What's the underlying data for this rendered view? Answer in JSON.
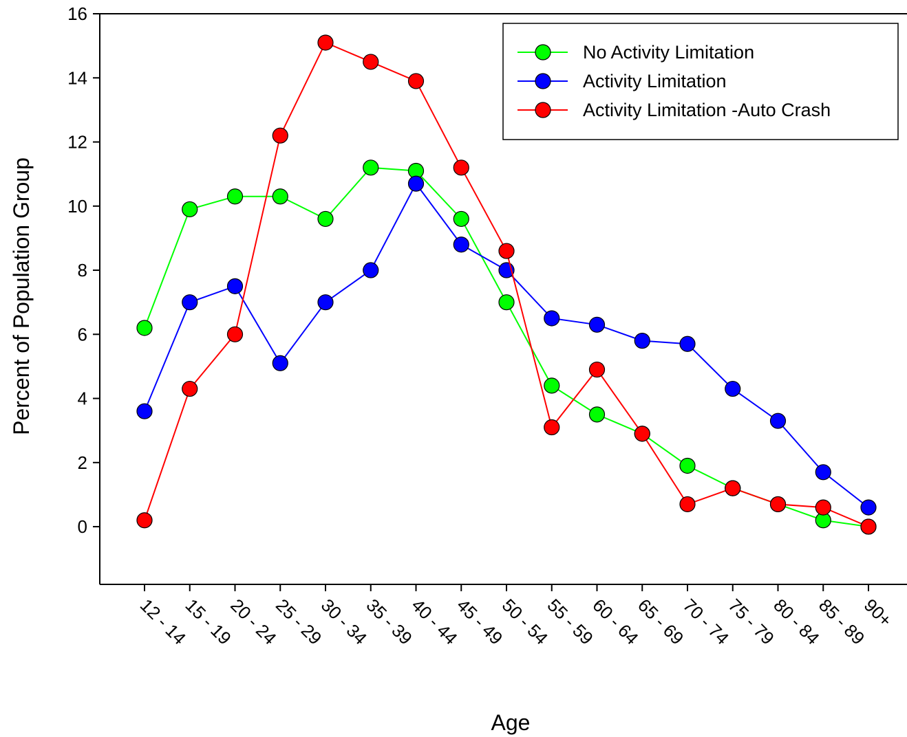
{
  "chart_data": {
    "type": "line",
    "title": "",
    "xlabel": "Age",
    "ylabel": "Percent of Population Group",
    "ylim": [
      -1.8,
      16
    ],
    "yticks": [
      0,
      2,
      4,
      6,
      8,
      10,
      12,
      14,
      16
    ],
    "categories": [
      "12 - 14",
      "15 - 19",
      "20 - 24",
      "25 - 29",
      "30 - 34",
      "35 - 39",
      "40 - 44",
      "45 - 49",
      "50 - 54",
      "55 - 59",
      "60 - 64",
      "65 - 69",
      "70 - 74",
      "75 - 79",
      "80 - 84",
      "85 - 89",
      "90+"
    ],
    "grid": false,
    "legend_position": "top-right",
    "series": [
      {
        "name": "No Activity Limitation",
        "color": "#00ff00",
        "values": [
          6.2,
          9.9,
          10.3,
          10.3,
          9.6,
          11.2,
          11.1,
          9.6,
          7.0,
          4.4,
          3.5,
          2.9,
          1.9,
          1.2,
          0.7,
          0.2,
          0.0
        ]
      },
      {
        "name": "Activity Limitation",
        "color": "#0000ff",
        "values": [
          3.6,
          7.0,
          7.5,
          5.1,
          7.0,
          8.0,
          10.7,
          8.8,
          8.0,
          6.5,
          6.3,
          5.8,
          5.7,
          4.3,
          3.3,
          1.7,
          0.6
        ]
      },
      {
        "name": "Activity Limitation -Auto Crash",
        "color": "#ff0000",
        "values": [
          0.2,
          4.3,
          6.0,
          12.2,
          15.1,
          14.5,
          13.9,
          11.2,
          8.6,
          3.1,
          4.9,
          2.9,
          0.7,
          1.2,
          0.7,
          0.6,
          0.0
        ]
      }
    ]
  }
}
